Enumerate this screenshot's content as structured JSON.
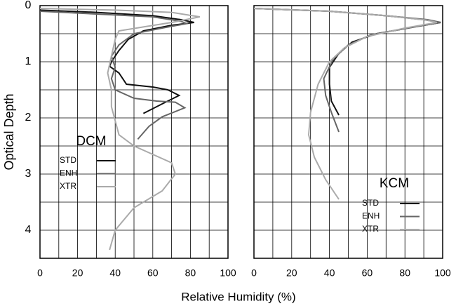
{
  "chart_data": [
    {
      "type": "line",
      "ylabel": "Optical Depth",
      "xlabel": "Relative Humidity (%)",
      "legend_title": "DCM",
      "legend": "lower left",
      "xlim": [
        0,
        100
      ],
      "ylim": [
        4.5,
        0
      ],
      "xticks": [
        0,
        20,
        40,
        60,
        80,
        100
      ],
      "yticks": [
        0,
        1,
        2,
        3,
        4
      ],
      "xgrid": [
        10,
        30,
        50,
        70,
        90
      ],
      "ygrid": [
        0.5,
        1.5,
        2.5,
        3.5
      ],
      "grid": true,
      "series": [
        {
          "name": "STD",
          "color": "#111111",
          "x": [
            0,
            30,
            60,
            75,
            82,
            70,
            55,
            47,
            42,
            38,
            37,
            42,
            46,
            60,
            68,
            74,
            65,
            55
          ],
          "y": [
            0.08,
            0.12,
            0.18,
            0.25,
            0.3,
            0.35,
            0.45,
            0.6,
            0.8,
            1.0,
            1.08,
            1.2,
            1.4,
            1.45,
            1.5,
            1.6,
            1.75,
            1.92
          ]
        },
        {
          "name": "ENH",
          "color": "#666666",
          "x": [
            0,
            30,
            60,
            75,
            78,
            65,
            50,
            42,
            38,
            40,
            38,
            40,
            50,
            62,
            72,
            77,
            65,
            58,
            52
          ],
          "y": [
            0.1,
            0.15,
            0.2,
            0.28,
            0.32,
            0.4,
            0.5,
            0.7,
            0.9,
            1.1,
            1.3,
            1.5,
            1.65,
            1.7,
            1.72,
            1.82,
            1.98,
            2.15,
            2.38
          ]
        },
        {
          "name": "XTR",
          "color": "#aaaaaa",
          "x": [
            0,
            40,
            70,
            85,
            70,
            55,
            42,
            40,
            38,
            36,
            38,
            38,
            42,
            50,
            60,
            70,
            72,
            65,
            50,
            40,
            37
          ],
          "y": [
            0.05,
            0.08,
            0.12,
            0.2,
            0.3,
            0.38,
            0.45,
            0.6,
            0.9,
            1.2,
            1.5,
            1.8,
            2.3,
            2.5,
            2.65,
            2.8,
            3.0,
            3.3,
            3.6,
            4.0,
            4.35
          ]
        }
      ]
    },
    {
      "type": "line",
      "legend_title": "KCM",
      "legend": "lower right",
      "xlim": [
        0,
        100
      ],
      "ylim": [
        4.5,
        0
      ],
      "xticks": [
        0,
        20,
        40,
        60,
        80,
        100
      ],
      "xgrid": [
        10,
        30,
        50,
        70,
        90
      ],
      "ygrid": [
        0.5,
        1,
        1.5,
        2,
        2.5,
        3,
        3.5,
        4
      ],
      "grid": true,
      "series": [
        {
          "name": "STD",
          "color": "#111111",
          "x": [
            0,
            40,
            70,
            90,
            99,
            85,
            65,
            52,
            45,
            40,
            40,
            41,
            45
          ],
          "y": [
            0.05,
            0.1,
            0.18,
            0.25,
            0.3,
            0.38,
            0.5,
            0.65,
            0.85,
            1.1,
            1.4,
            1.7,
            1.95
          ]
        },
        {
          "name": "ENH",
          "color": "#666666",
          "x": [
            0,
            40,
            70,
            92,
            99,
            85,
            62,
            50,
            42,
            37,
            38,
            41,
            45
          ],
          "y": [
            0.05,
            0.1,
            0.18,
            0.25,
            0.3,
            0.38,
            0.52,
            0.7,
            0.95,
            1.3,
            1.6,
            1.9,
            2.25
          ]
        },
        {
          "name": "XTR",
          "color": "#aaaaaa",
          "x": [
            0,
            40,
            70,
            92,
            97,
            80,
            60,
            48,
            40,
            34,
            30,
            29,
            32,
            38,
            45
          ],
          "y": [
            0.05,
            0.1,
            0.18,
            0.26,
            0.3,
            0.4,
            0.55,
            0.75,
            1.0,
            1.4,
            1.9,
            2.3,
            2.7,
            3.1,
            3.45
          ]
        }
      ]
    }
  ]
}
